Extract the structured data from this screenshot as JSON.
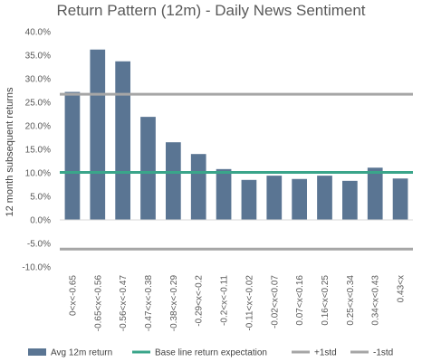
{
  "chart_data": {
    "type": "bar",
    "title": "Return Pattern (12m) - Daily News Sentiment",
    "ylabel": "12 month subsequent returns",
    "ylim": [
      -0.1,
      0.4
    ],
    "yticks": [
      "-10.0%",
      "-5.0%",
      "0.0%",
      "5.0%",
      "10.0%",
      "15.0%",
      "20.0%",
      "25.0%",
      "30.0%",
      "35.0%",
      "40.0%"
    ],
    "ytick_values": [
      -0.1,
      -0.05,
      0.0,
      0.05,
      0.1,
      0.15,
      0.2,
      0.25,
      0.3,
      0.35,
      0.4
    ],
    "categories": [
      "0<x<-0.65",
      "-0.65<x<-0.56",
      "-0.56<x<-0.47",
      "-0.47<x<-0.38",
      "-0.38<x<-0.29",
      "-0.29<x<-0.2",
      "-0.2<x<-0.11",
      "-0.11<x<-0.02",
      "-0.02<x<0.07",
      "0.07<x<0.16",
      "0.16<x<0.25",
      "0.25<x<0.34",
      "0.34<x<0.43",
      "0.43<x"
    ],
    "series": [
      {
        "name": "Avg 12m return",
        "type": "bar",
        "color": "#5a7593",
        "values": [
          0.272,
          0.362,
          0.337,
          0.219,
          0.165,
          0.14,
          0.108,
          0.085,
          0.094,
          0.087,
          0.094,
          0.083,
          0.111,
          0.088
        ]
      },
      {
        "name": "Base line return expectation",
        "type": "line",
        "color": "#3aa58a",
        "value": 0.101
      },
      {
        "name": "+1std",
        "type": "line",
        "color": "#a6a6a6",
        "value": 0.267
      },
      {
        "name": "-1std",
        "type": "line",
        "color": "#a6a6a6",
        "value": -0.062
      }
    ],
    "legend_position": "bottom",
    "grid": false
  }
}
